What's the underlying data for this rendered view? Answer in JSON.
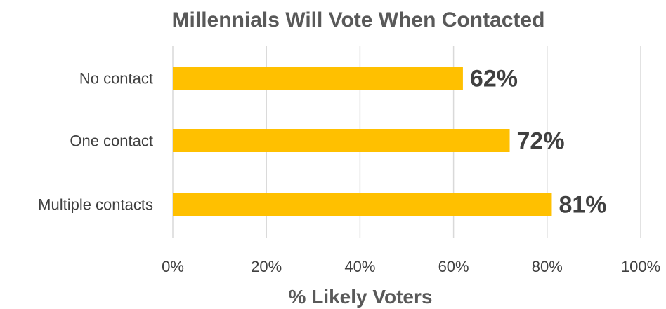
{
  "chart_data": {
    "type": "bar",
    "orientation": "horizontal",
    "title": "Millennials Will Vote When Contacted",
    "xlabel": "% Likely Voters",
    "ylabel": "",
    "categories": [
      "No contact",
      "One contact",
      "Multiple contacts"
    ],
    "values": [
      62,
      72,
      81
    ],
    "data_labels": [
      "62%",
      "72%",
      "81%"
    ],
    "xlim": [
      0,
      100
    ],
    "ticks": [
      0,
      20,
      40,
      60,
      80,
      100
    ],
    "tick_labels": [
      "0%",
      "20%",
      "40%",
      "60%",
      "80%",
      "100%"
    ],
    "bar_color": "#ffc000",
    "grid": true,
    "legend": "none"
  }
}
